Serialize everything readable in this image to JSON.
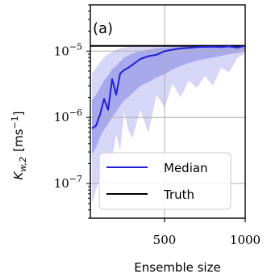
{
  "chart_data": {
    "type": "line",
    "panel_label": "(a)",
    "xlabel": "Ensemble size",
    "ylabel_main": "K",
    "ylabel_sub": "w,2",
    "ylabel_unit": "[ms",
    "ylabel_unit_exp": "−1",
    "ylabel_unit_close": "]",
    "yscale": "log",
    "xlim": [
      40,
      1000
    ],
    "ylim": [
      3e-08,
      5e-05
    ],
    "x_ticks": [
      {
        "value": 500,
        "label": "500"
      },
      {
        "value": 1000,
        "label": "1000"
      }
    ],
    "y_ticks": [
      {
        "value": 1e-07,
        "base": "10",
        "exp": "−7"
      },
      {
        "value": 1e-06,
        "base": "10",
        "exp": "−6"
      },
      {
        "value": 1e-05,
        "base": "10",
        "exp": "−5"
      }
    ],
    "grid": true,
    "legend_location": "lower-right",
    "legend": [
      {
        "label": "Median",
        "color": "#1f1fd8",
        "kind": "line"
      },
      {
        "label": "Truth",
        "color": "#000000",
        "kind": "line"
      }
    ],
    "truth_value": 1.2e-05,
    "colors": {
      "median": "#1f1fd8",
      "inner_band": "#a8a8ec",
      "outer_band": "#d6d6f6",
      "truth": "#000000"
    },
    "x": [
      50,
      75,
      100,
      125,
      150,
      175,
      200,
      225,
      250,
      275,
      300,
      350,
      400,
      450,
      500,
      550,
      600,
      650,
      700,
      750,
      800,
      850,
      900,
      950,
      1000
    ],
    "series": [
      {
        "name": "Median",
        "values": [
          6.8e-07,
          7.5e-07,
          1.1e-06,
          1.9e-06,
          1.3e-06,
          3.8e-06,
          2.2e-06,
          4.6e-06,
          5.2e-06,
          5.6e-06,
          6.2e-06,
          7.6e-06,
          8.4e-06,
          8.8e-06,
          1e-05,
          1.05e-05,
          1.1e-05,
          1.12e-05,
          1.15e-05,
          1.16e-05,
          1.17e-05,
          1.15e-05,
          1.18e-05,
          1.13e-05,
          1.2e-05
        ]
      }
    ],
    "inner_band": {
      "lower": [
        2.8e-07,
        3.5e-07,
        5e-07,
        6.5e-07,
        8e-07,
        1e-06,
        1.2e-06,
        1.5e-06,
        1.8e-06,
        2e-06,
        2.3e-06,
        3e-06,
        3.4e-06,
        4e-06,
        4.5e-06,
        5.3e-06,
        6e-06,
        6.6e-06,
        7.2e-06,
        7.6e-06,
        8e-06,
        8.5e-06,
        9e-06,
        9.3e-06,
        1e-05
      ],
      "upper": [
        1.8e-06,
        2.2e-06,
        2.8e-06,
        3.6e-06,
        4.3e-06,
        5.3e-06,
        6e-06,
        7e-06,
        8e-06,
        8.6e-06,
        9.2e-06,
        1e-05,
        1.05e-05,
        1.1e-05,
        1.13e-05,
        1.15e-05,
        1.17e-05,
        1.18e-05,
        1.2e-05,
        1.2e-05,
        1.21e-05,
        1.21e-05,
        1.22e-05,
        1.22e-05,
        1.23e-05
      ]
    },
    "outer_band": {
      "lower": [
        5e-08,
        8e-08,
        1.3e-07,
        2e-07,
        1.6e-07,
        2.4e-07,
        5.5e-07,
        3.2e-07,
        1.2e-06,
        6.5e-07,
        4.8e-07,
        1.3e-06,
        5.8e-07,
        2.2e-06,
        1.4e-06,
        3.2e-06,
        2e-06,
        3.6e-06,
        2.8e-06,
        4.2e-06,
        3e-06,
        5.6e-06,
        4.8e-06,
        7.8e-06,
        9.2e-06
      ],
      "upper": [
        4.6e-06,
        5.6e-06,
        6.8e-06,
        8e-06,
        9e-06,
        9.8e-06,
        1.05e-05,
        1.1e-05,
        1.14e-05,
        1.16e-05,
        1.18e-05,
        1.2e-05,
        1.21e-05,
        1.22e-05,
        1.23e-05,
        1.23e-05,
        1.24e-05,
        1.24e-05,
        1.25e-05,
        1.25e-05,
        1.25e-05,
        1.25e-05,
        1.26e-05,
        1.26e-05,
        1.26e-05
      ]
    }
  }
}
